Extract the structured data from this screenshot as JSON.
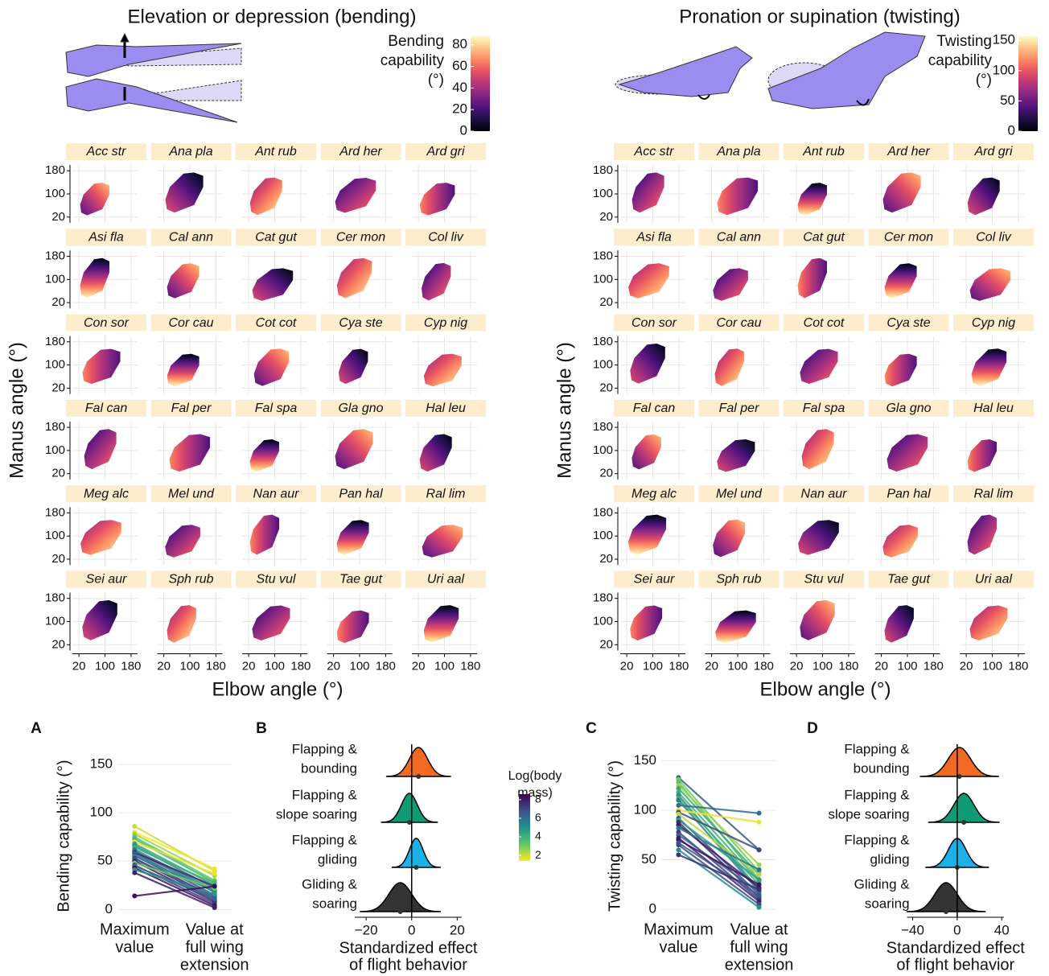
{
  "panels": [
    {
      "title": "Elevation or depression (bending)",
      "colorbar": {
        "title": [
          "Bending",
          "capability",
          "(°)"
        ],
        "lim": [
          0,
          88
        ],
        "ticks": [
          0,
          20,
          40,
          60,
          80
        ]
      },
      "species": [
        "Acc str",
        "Ana pla",
        "Ant rub",
        "Ard her",
        "Ard gri",
        "Asi fla",
        "Cal ann",
        "Cat gut",
        "Cer mon",
        "Col liv",
        "Con sor",
        "Cor cau",
        "Cot cot",
        "Cya ste",
        "Cyp nig",
        "Fal can",
        "Fal per",
        "Fal spa",
        "Gla gno",
        "Hal leu",
        "Meg alc",
        "Mel und",
        "Nan aur",
        "Pan hal",
        "Ral lim",
        "Sei aur",
        "Sph rub",
        "Stu vul",
        "Tae gut",
        "Uri aal"
      ],
      "ylabel": "Manus angle (°)",
      "xlabel": "Elbow angle (°)",
      "xlim": [
        0,
        200
      ],
      "ylim": [
        0,
        200
      ],
      "xticks": [
        20,
        100,
        180
      ],
      "yticks": [
        20,
        100,
        180
      ]
    },
    {
      "title": "Pronation or supination (twisting)",
      "colorbar": {
        "title": [
          "Twisting",
          "capability",
          "(°)"
        ],
        "lim": [
          0,
          157
        ],
        "ticks": [
          0,
          50,
          100,
          150
        ]
      },
      "species": [
        "Acc str",
        "Ana pla",
        "Ant rub",
        "Ard her",
        "Ard gri",
        "Asi fla",
        "Cal ann",
        "Cat gut",
        "Cer mon",
        "Col liv",
        "Con sor",
        "Cor cau",
        "Cot cot",
        "Cya ste",
        "Cyp nig",
        "Fal can",
        "Fal per",
        "Fal spa",
        "Gla gno",
        "Hal leu",
        "Meg alc",
        "Mel und",
        "Nan aur",
        "Pan hal",
        "Ral lim",
        "Sei aur",
        "Sph rub",
        "Stu vul",
        "Tae gut",
        "Uri aal"
      ],
      "ylabel": "Manus angle (°)",
      "xlabel": "Elbow angle (°)",
      "xlim": [
        0,
        200
      ],
      "ylim": [
        0,
        200
      ],
      "xticks": [
        20,
        100,
        180
      ],
      "yticks": [
        20,
        100,
        180
      ]
    }
  ],
  "mass_legend": {
    "title": [
      "Log(body",
      "mass)"
    ],
    "lim": [
      1.4,
      8.6
    ],
    "ticks": [
      2,
      4,
      6,
      8
    ]
  },
  "chart_data": [
    {
      "type": "slope",
      "label": "A",
      "ylabel": "Bending capability (°)",
      "categories": [
        [
          "Maximum",
          "value"
        ],
        [
          "Value at",
          "full wing",
          "extension"
        ]
      ],
      "ylim": [
        -8,
        160
      ],
      "yticks": [
        0,
        50,
        100,
        150
      ],
      "lines": [
        {
          "values": [
            86,
            40
          ],
          "log_mass": 2.0
        },
        {
          "values": [
            80,
            42
          ],
          "log_mass": 1.5
        },
        {
          "values": [
            78,
            35
          ],
          "log_mass": 2.5
        },
        {
          "values": [
            75,
            30
          ],
          "log_mass": 3.2
        },
        {
          "values": [
            73,
            28
          ],
          "log_mass": 3.8
        },
        {
          "values": [
            70,
            37
          ],
          "log_mass": 1.6
        },
        {
          "values": [
            68,
            25
          ],
          "log_mass": 4.5
        },
        {
          "values": [
            66,
            22
          ],
          "log_mass": 5.0
        },
        {
          "values": [
            64,
            27
          ],
          "log_mass": 4.0
        },
        {
          "values": [
            62,
            20
          ],
          "log_mass": 5.5
        },
        {
          "values": [
            60,
            18
          ],
          "log_mass": 6.0
        },
        {
          "values": [
            59,
            24
          ],
          "log_mass": 7.8
        },
        {
          "values": [
            58,
            15
          ],
          "log_mass": 6.5
        },
        {
          "values": [
            56,
            12
          ],
          "log_mass": 7.0
        },
        {
          "values": [
            55,
            19
          ],
          "log_mass": 5.2
        },
        {
          "values": [
            53,
            10
          ],
          "log_mass": 7.5
        },
        {
          "values": [
            52,
            14
          ],
          "log_mass": 6.8
        },
        {
          "values": [
            50,
            8
          ],
          "log_mass": 8.0
        },
        {
          "values": [
            48,
            22
          ],
          "log_mass": 3.0
        },
        {
          "values": [
            46,
            6
          ],
          "log_mass": 7.2
        },
        {
          "values": [
            45,
            11
          ],
          "log_mass": 6.2
        },
        {
          "values": [
            43,
            4
          ],
          "log_mass": 8.3
        },
        {
          "values": [
            41,
            16
          ],
          "log_mass": 4.8
        },
        {
          "values": [
            38,
            2
          ],
          "log_mass": 7.9
        },
        {
          "values": [
            14,
            24
          ],
          "log_mass": 8.4
        }
      ]
    },
    {
      "type": "ridge",
      "label": "B",
      "categories": [
        [
          "Flapping &",
          "bounding"
        ],
        [
          "Flapping &",
          "slope soaring"
        ],
        [
          "Flapping &",
          "gliding"
        ],
        [
          "Gliding &",
          "soaring"
        ]
      ],
      "values": [
        3,
        -1,
        2,
        -5
      ],
      "spread": [
        4,
        3.5,
        3,
        5
      ],
      "colors": [
        "#f26a21",
        "#0f9b76",
        "#1ab1e6",
        "#333333"
      ],
      "xlim": [
        -25,
        22
      ],
      "xticks": [
        {
          "value": -20,
          "label": "−20"
        },
        0,
        20
      ],
      "xlabel": [
        "Standardized effect",
        "of flight behavior"
      ]
    },
    {
      "type": "slope",
      "label": "C",
      "ylabel": "Twisting capability (°)",
      "categories": [
        [
          "Maximum",
          "value"
        ],
        [
          "Value at",
          "full wing",
          "extension"
        ]
      ],
      "ylim": [
        -8,
        156
      ],
      "yticks": [
        0,
        50,
        100,
        150
      ],
      "lines": [
        {
          "values": [
            133,
            60
          ],
          "log_mass": 6.5
        },
        {
          "values": [
            131,
            38
          ],
          "log_mass": 3.0
        },
        {
          "values": [
            128,
            30
          ],
          "log_mass": 3.5
        },
        {
          "values": [
            125,
            45
          ],
          "log_mass": 2.5
        },
        {
          "values": [
            122,
            35
          ],
          "log_mass": 4.2
        },
        {
          "values": [
            118,
            28
          ],
          "log_mass": 4.0
        },
        {
          "values": [
            115,
            20
          ],
          "log_mass": 5.0
        },
        {
          "values": [
            112,
            25
          ],
          "log_mass": 3.8
        },
        {
          "values": [
            110,
            18
          ],
          "log_mass": 5.5
        },
        {
          "values": [
            105,
            97
          ],
          "log_mass": 6.0
        },
        {
          "values": [
            100,
            88
          ],
          "log_mass": 1.6
        },
        {
          "values": [
            98,
            60
          ],
          "log_mass": 7.0
        },
        {
          "values": [
            96,
            35
          ],
          "log_mass": 2.2
        },
        {
          "values": [
            92,
            15
          ],
          "log_mass": 6.8
        },
        {
          "values": [
            90,
            30
          ],
          "log_mass": 4.5
        },
        {
          "values": [
            88,
            12
          ],
          "log_mass": 7.5
        },
        {
          "values": [
            85,
            22
          ],
          "log_mass": 8.0
        },
        {
          "values": [
            82,
            40
          ],
          "log_mass": 5.8
        },
        {
          "values": [
            78,
            10
          ],
          "log_mass": 7.2
        },
        {
          "values": [
            75,
            18
          ],
          "log_mass": 6.2
        },
        {
          "values": [
            72,
            8
          ],
          "log_mass": 7.8
        },
        {
          "values": [
            70,
            25
          ],
          "log_mass": 8.2
        },
        {
          "values": [
            67,
            14
          ],
          "log_mass": 6.6
        },
        {
          "values": [
            65,
            5
          ],
          "log_mass": 7.0
        },
        {
          "values": [
            60,
            2
          ],
          "log_mass": 5.0
        },
        {
          "values": [
            55,
            20
          ],
          "log_mass": 7.6
        }
      ]
    },
    {
      "type": "ridge",
      "label": "D",
      "categories": [
        [
          "Flapping &",
          "bounding"
        ],
        [
          "Flapping &",
          "slope soaring"
        ],
        [
          "Flapping &",
          "gliding"
        ],
        [
          "Gliding &",
          "soaring"
        ]
      ],
      "values": [
        2,
        6,
        0,
        -10
      ],
      "spread": [
        10,
        9,
        8,
        10
      ],
      "colors": [
        "#f26a21",
        "#0f9b76",
        "#1ab1e6",
        "#333333"
      ],
      "xlim": [
        -45,
        42
      ],
      "xticks": [
        {
          "value": -40,
          "label": "−40"
        },
        0,
        40
      ],
      "xlabel": [
        "Standardized effect",
        "of flight behavior"
      ]
    }
  ]
}
